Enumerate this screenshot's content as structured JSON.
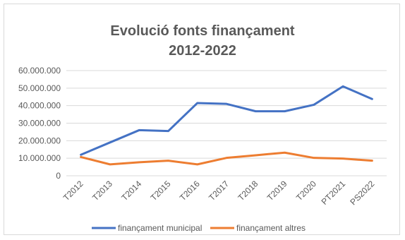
{
  "chart_data": {
    "type": "line",
    "title_lines": [
      "Evolució fonts finançament",
      "2012-2022"
    ],
    "categories": [
      "T2012",
      "T2013",
      "T2014",
      "T2015",
      "T2016",
      "T2017",
      "T2018",
      "T2019",
      "T2020",
      "PT2021",
      "PS2022"
    ],
    "ylim": [
      0,
      60000000
    ],
    "yticks": [
      0,
      10000000,
      20000000,
      30000000,
      40000000,
      50000000,
      60000000
    ],
    "ytick_labels": [
      "0",
      "10.000.000",
      "20.000.000",
      "30.000.000",
      "40.000.000",
      "50.000.000",
      "60.000.000"
    ],
    "grid": true,
    "legend_position": "bottom",
    "series": [
      {
        "name": "finançament municipal",
        "color": "#4472c4",
        "values": [
          12000000,
          19000000,
          26000000,
          25500000,
          41500000,
          41000000,
          36800000,
          36800000,
          40500000,
          51000000,
          43800000
        ]
      },
      {
        "name": "finançament altres",
        "color": "#ed7d31",
        "values": [
          10700000,
          6500000,
          7700000,
          8600000,
          6500000,
          10200000,
          11700000,
          13200000,
          10200000,
          9800000,
          8600000
        ]
      }
    ]
  }
}
